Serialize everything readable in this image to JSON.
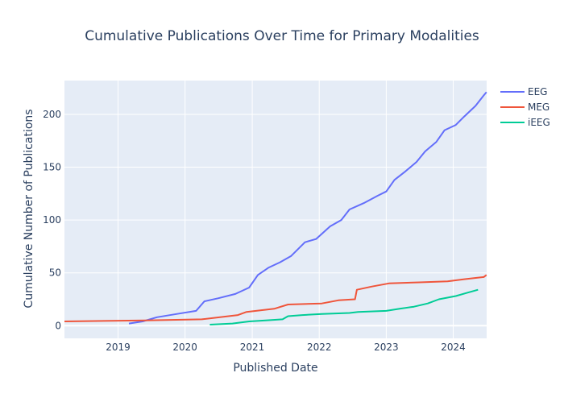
{
  "chart_data": {
    "type": "line",
    "title": "Cumulative Publications Over Time for Primary Modalities",
    "xlabel": "Published Date",
    "ylabel": "Cumulative Number of Publications",
    "xlim": [
      "2018-03-15",
      "2024-07-01"
    ],
    "ylim": [
      -12,
      232
    ],
    "x_ticks": [
      "2019-01-01",
      "2020-01-01",
      "2021-01-01",
      "2022-01-01",
      "2023-01-01",
      "2024-01-01"
    ],
    "x_tick_labels": [
      "2019",
      "2020",
      "2021",
      "2022",
      "2023",
      "2024"
    ],
    "y_ticks": [
      0,
      50,
      100,
      150,
      200
    ],
    "y_tick_labels": [
      "0",
      "50",
      "100",
      "150",
      "200"
    ],
    "grid": true,
    "legend_position": "top-right",
    "colors": {
      "plot_background": "#e5ecf6",
      "grid": "#ffffff",
      "text": "#2a3f5f"
    },
    "series": [
      {
        "name": "EEG",
        "color": "#636efa",
        "points": [
          [
            "2019-03-01",
            2
          ],
          [
            "2019-05-15",
            4
          ],
          [
            "2019-08-01",
            8
          ],
          [
            "2019-11-15",
            11
          ],
          [
            "2020-03-01",
            14
          ],
          [
            "2020-04-15",
            23
          ],
          [
            "2020-07-01",
            26
          ],
          [
            "2020-10-01",
            30
          ],
          [
            "2020-12-15",
            36
          ],
          [
            "2021-02-01",
            48
          ],
          [
            "2021-04-01",
            55
          ],
          [
            "2021-06-01",
            60
          ],
          [
            "2021-08-01",
            66
          ],
          [
            "2021-10-15",
            79
          ],
          [
            "2021-12-15",
            82
          ],
          [
            "2022-03-01",
            94
          ],
          [
            "2022-05-01",
            100
          ],
          [
            "2022-06-15",
            110
          ],
          [
            "2022-09-01",
            116
          ],
          [
            "2022-11-15",
            123
          ],
          [
            "2023-01-01",
            127
          ],
          [
            "2023-02-15",
            138
          ],
          [
            "2023-04-15",
            146
          ],
          [
            "2023-06-15",
            155
          ],
          [
            "2023-08-01",
            165
          ],
          [
            "2023-10-01",
            174
          ],
          [
            "2023-11-15",
            185
          ],
          [
            "2024-01-15",
            190
          ],
          [
            "2024-03-01",
            198
          ],
          [
            "2024-05-01",
            208
          ],
          [
            "2024-06-15",
            218
          ],
          [
            "2024-06-30",
            221
          ]
        ]
      },
      {
        "name": "MEG",
        "color": "#ef553b",
        "points": [
          [
            "2018-03-15",
            4
          ],
          [
            "2019-06-01",
            5
          ],
          [
            "2020-04-01",
            6
          ],
          [
            "2020-10-15",
            10
          ],
          [
            "2020-12-01",
            13
          ],
          [
            "2021-05-01",
            16
          ],
          [
            "2021-07-15",
            20
          ],
          [
            "2022-01-15",
            21
          ],
          [
            "2022-04-15",
            24
          ],
          [
            "2022-07-15",
            25
          ],
          [
            "2022-07-25",
            34
          ],
          [
            "2022-10-15",
            37
          ],
          [
            "2023-01-15",
            40
          ],
          [
            "2023-07-01",
            41
          ],
          [
            "2023-12-01",
            42
          ],
          [
            "2024-03-01",
            44
          ],
          [
            "2024-06-15",
            46
          ],
          [
            "2024-06-30",
            48
          ]
        ]
      },
      {
        "name": "iEEG",
        "color": "#00cc96",
        "points": [
          [
            "2020-05-15",
            1
          ],
          [
            "2020-09-15",
            2
          ],
          [
            "2020-12-15",
            4
          ],
          [
            "2021-03-15",
            5
          ],
          [
            "2021-06-15",
            6
          ],
          [
            "2021-07-15",
            9
          ],
          [
            "2021-10-01",
            10
          ],
          [
            "2022-01-15",
            11
          ],
          [
            "2022-06-15",
            12
          ],
          [
            "2022-08-01",
            13
          ],
          [
            "2023-01-01",
            14
          ],
          [
            "2023-03-15",
            16
          ],
          [
            "2023-06-01",
            18
          ],
          [
            "2023-08-15",
            21
          ],
          [
            "2023-10-15",
            25
          ],
          [
            "2024-01-15",
            28
          ],
          [
            "2024-03-15",
            31
          ],
          [
            "2024-05-15",
            34
          ]
        ]
      }
    ]
  }
}
